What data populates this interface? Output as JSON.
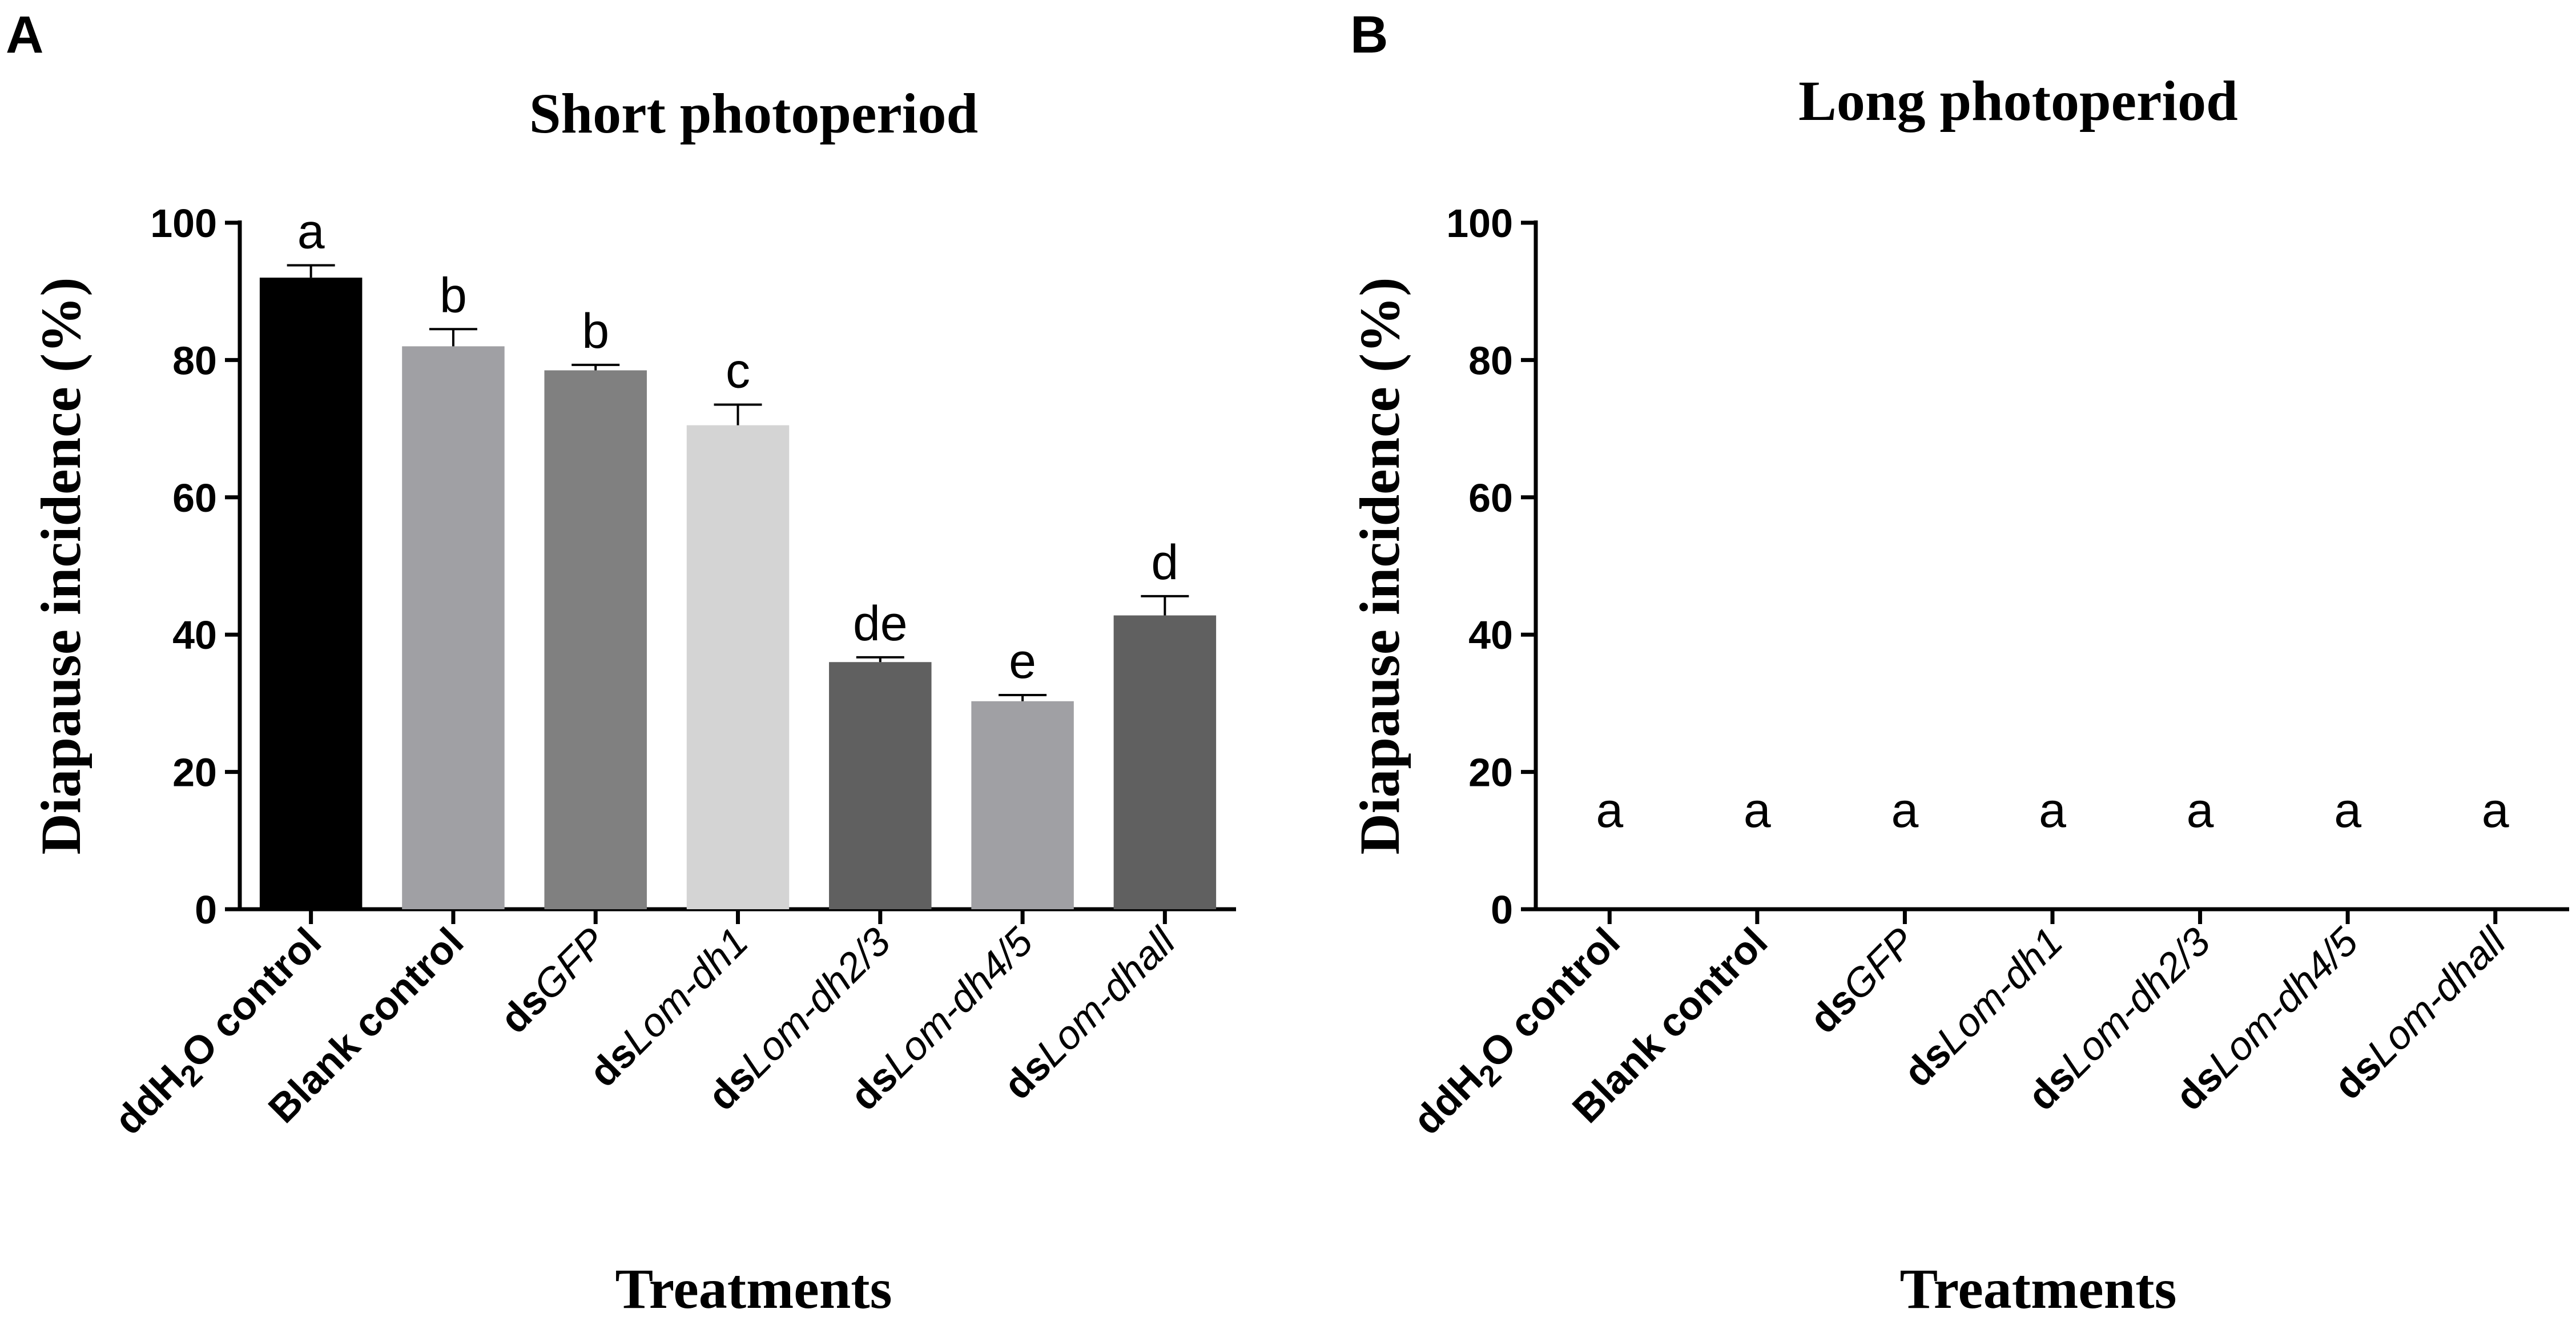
{
  "chart_data": [
    {
      "type": "bar",
      "panel": "A",
      "title": "Short photoperiod",
      "ylabel": "Diapause incidence (%)",
      "xlabel": "Treatments",
      "ylim": [
        0,
        100
      ],
      "yticks": [
        0,
        20,
        40,
        60,
        80,
        100
      ],
      "categories": [
        {
          "prefix": "ddH",
          "sub": "2",
          "suffix": "O control",
          "italic": ""
        },
        {
          "prefix": "Blank control",
          "sub": "",
          "suffix": "",
          "italic": ""
        },
        {
          "prefix": "ds",
          "sub": "",
          "suffix": "",
          "italic": "GFP"
        },
        {
          "prefix": "ds",
          "sub": "",
          "suffix": "",
          "italic": "Lom-dh1"
        },
        {
          "prefix": "ds",
          "sub": "",
          "suffix": "",
          "italic": "Lom-dh2/3"
        },
        {
          "prefix": "ds",
          "sub": "",
          "suffix": "",
          "italic": "Lom-dh4/5"
        },
        {
          "prefix": "ds",
          "sub": "",
          "suffix": "",
          "italic": "Lom-dhall"
        }
      ],
      "values": [
        92,
        82,
        78.5,
        70.5,
        36,
        30.3,
        42.8
      ],
      "errors": [
        1.8,
        2.5,
        0.8,
        3.0,
        0.7,
        0.9,
        2.8
      ],
      "significance": [
        "a",
        "b",
        "b",
        "c",
        "de",
        "e",
        "d"
      ],
      "colors": [
        "#000000",
        "#a0a0a4",
        "#808080",
        "#d4d4d4",
        "#606060",
        "#a0a0a4",
        "#606060"
      ]
    },
    {
      "type": "bar",
      "panel": "B",
      "title": "Long photoperiod",
      "ylabel": "Diapause incidence (%)",
      "xlabel": "Treatments",
      "ylim": [
        0,
        100
      ],
      "yticks": [
        0,
        20,
        40,
        60,
        80,
        100
      ],
      "categories": [
        {
          "prefix": "ddH",
          "sub": "2",
          "suffix": "O control",
          "italic": ""
        },
        {
          "prefix": "Blank control",
          "sub": "",
          "suffix": "",
          "italic": ""
        },
        {
          "prefix": "ds",
          "sub": "",
          "suffix": "",
          "italic": "GFP"
        },
        {
          "prefix": "ds",
          "sub": "",
          "suffix": "",
          "italic": "Lom-dh1"
        },
        {
          "prefix": "ds",
          "sub": "",
          "suffix": "",
          "italic": "Lom-dh2/3"
        },
        {
          "prefix": "ds",
          "sub": "",
          "suffix": "",
          "italic": "Lom-dh4/5"
        },
        {
          "prefix": "ds",
          "sub": "",
          "suffix": "",
          "italic": "Lom-dhall"
        }
      ],
      "values": [
        0,
        0,
        0,
        0,
        0,
        0,
        0
      ],
      "errors": [
        0,
        0,
        0,
        0,
        0,
        0,
        0
      ],
      "significance": [
        "a",
        "a",
        "a",
        "a",
        "a",
        "a",
        "a"
      ],
      "colors": [
        "#000000",
        "#a0a0a4",
        "#808080",
        "#d4d4d4",
        "#606060",
        "#a0a0a4",
        "#606060"
      ]
    }
  ]
}
